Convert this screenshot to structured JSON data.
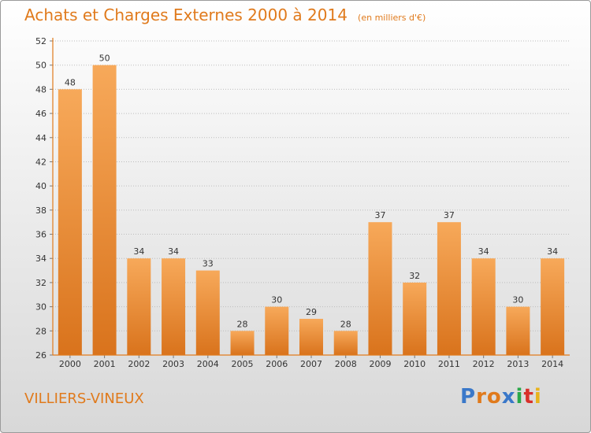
{
  "header": {
    "title": "Achats et Charges Externes 2000 à 2014",
    "subtitle": "(en milliers d'€)"
  },
  "footer": {
    "town": "VILLIERS-VINEUX",
    "brand": "Proxiti",
    "brand_colors": [
      "#3a78c9",
      "#e07a1c",
      "#e07a1c",
      "#3a78c9",
      "#2aa84a",
      "#d8302a",
      "#e8b31c"
    ]
  },
  "chart_data": {
    "type": "bar",
    "title": "Achats et Charges Externes 2000 à 2014",
    "subtitle": "(en milliers d'€)",
    "categories": [
      "2000",
      "2001",
      "2002",
      "2003",
      "2004",
      "2005",
      "2006",
      "2007",
      "2008",
      "2009",
      "2010",
      "2011",
      "2012",
      "2013",
      "2014"
    ],
    "values": [
      48,
      50,
      34,
      34,
      33,
      28,
      30,
      29,
      28,
      37,
      32,
      37,
      34,
      30,
      34
    ],
    "ylim": [
      26,
      52
    ],
    "yticks": [
      26,
      28,
      30,
      32,
      34,
      36,
      38,
      40,
      42,
      44,
      46,
      48,
      50,
      52
    ],
    "grid": true,
    "bar_color_top": "#f7a95a",
    "bar_color_bottom": "#d9731c",
    "axis_color": "#e07a1c"
  }
}
